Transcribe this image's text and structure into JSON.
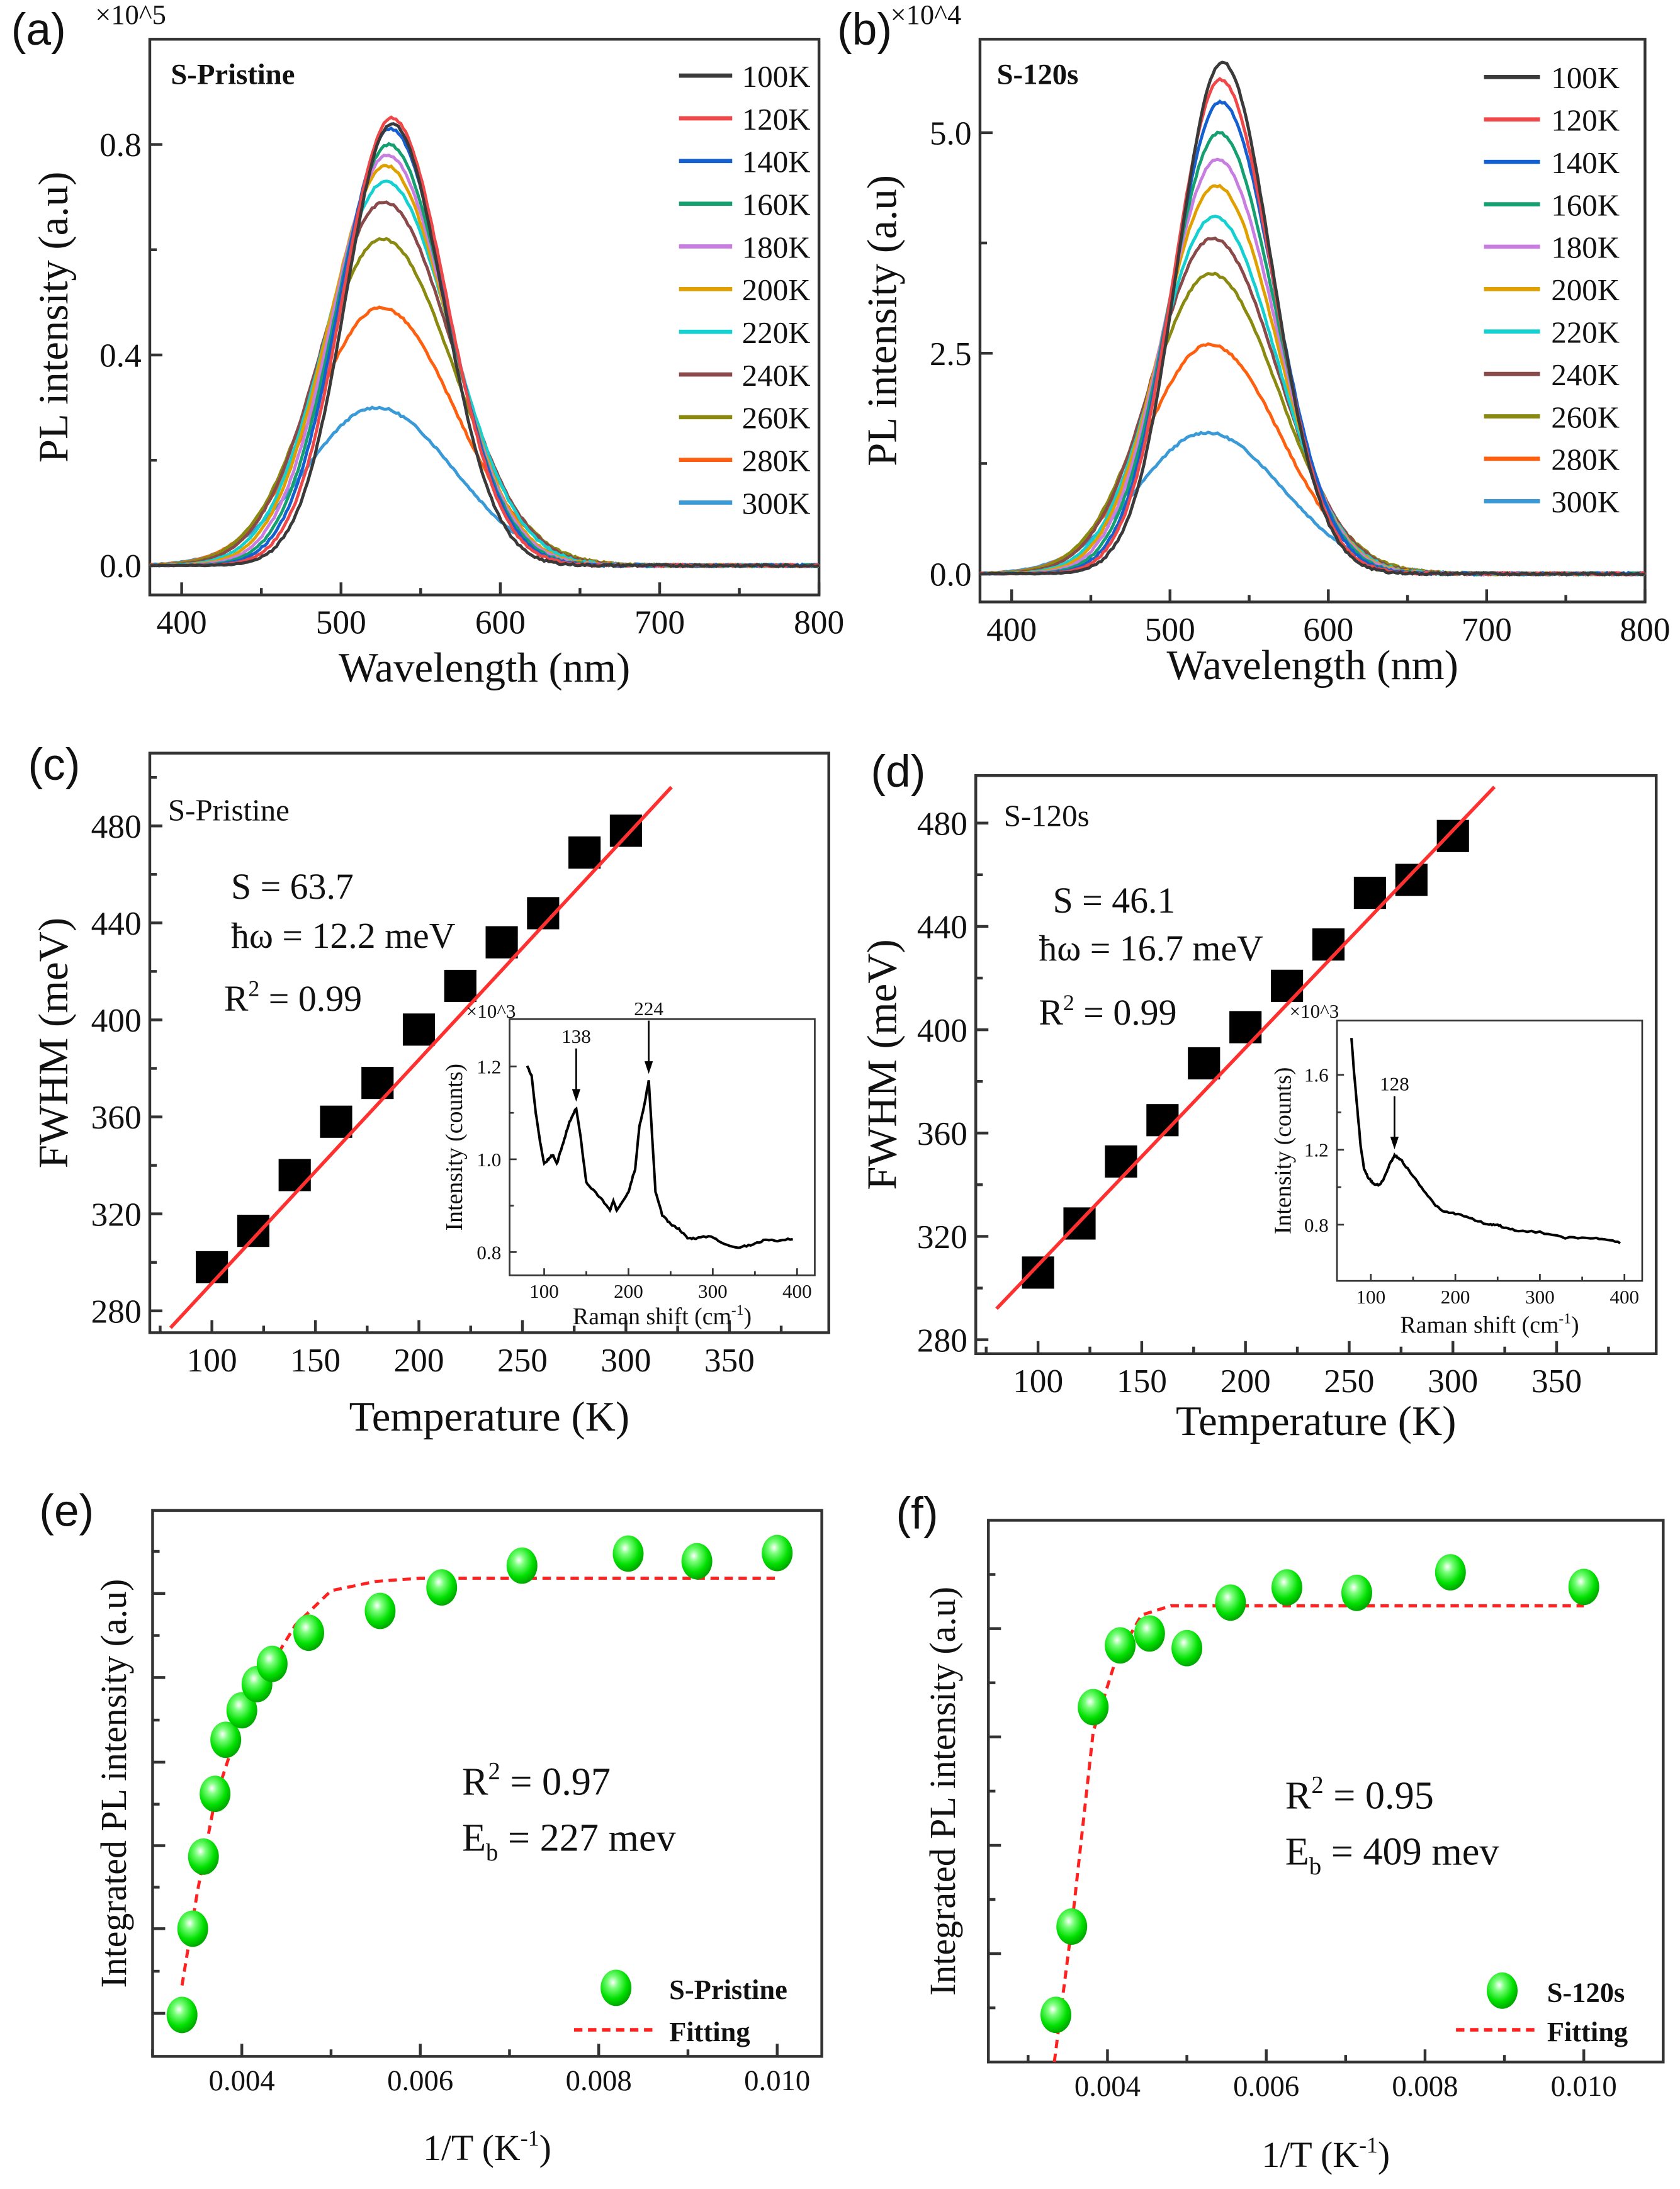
{
  "panel_labels": [
    "(a)",
    "(b)",
    "(c)",
    "(d)",
    "(e)",
    "(f)"
  ],
  "chart_data": [
    {
      "id": "a",
      "type": "line",
      "sample_label": "S-Pristine",
      "multiplier": "×10^5",
      "xlabel": "Wavelength (nm)",
      "ylabel": "PL intensity (a.u)",
      "xlim": [
        380,
        800
      ],
      "ylim": [
        -0.056,
        1.0
      ],
      "xticks": {
        "values": [
          400,
          500,
          600,
          700,
          800
        ],
        "labels": [
          "400",
          "500",
          "600",
          "700",
          "800"
        ],
        "minor": [
          450,
          550,
          650,
          750
        ]
      },
      "yticks": {
        "values": [
          0,
          0.4,
          0.8
        ],
        "labels": [
          "0.0",
          "0.4",
          "0.8"
        ],
        "minor": [
          0.2,
          0.6
        ]
      },
      "legend_position": "top-right",
      "series": [
        {
          "name": "100K",
          "color": "#3a3a3a",
          "peak_nm": 532,
          "peak": 0.84,
          "fwhm_nm": 72
        },
        {
          "name": "120K",
          "color": "#f04848",
          "peak_nm": 532,
          "peak": 0.85,
          "fwhm_nm": 76
        },
        {
          "name": "140K",
          "color": "#1560d0",
          "peak_nm": 531,
          "peak": 0.83,
          "fwhm_nm": 79
        },
        {
          "name": "160K",
          "color": "#14a070",
          "peak_nm": 530,
          "peak": 0.8,
          "fwhm_nm": 82
        },
        {
          "name": "180K",
          "color": "#c87de0",
          "peak_nm": 529,
          "peak": 0.78,
          "fwhm_nm": 85
        },
        {
          "name": "200K",
          "color": "#e0a000",
          "peak_nm": 528,
          "peak": 0.76,
          "fwhm_nm": 88
        },
        {
          "name": "220K",
          "color": "#14d0d0",
          "peak_nm": 528,
          "peak": 0.73,
          "fwhm_nm": 92
        },
        {
          "name": "240K",
          "color": "#8b4a4a",
          "peak_nm": 527,
          "peak": 0.69,
          "fwhm_nm": 96
        },
        {
          "name": "260K",
          "color": "#8a8a10",
          "peak_nm": 526,
          "peak": 0.62,
          "fwhm_nm": 100
        },
        {
          "name": "280K",
          "color": "#ff6010",
          "peak_nm": 525,
          "peak": 0.49,
          "fwhm_nm": 104
        },
        {
          "name": "300K",
          "color": "#3a9ad8",
          "peak_nm": 522,
          "peak": 0.3,
          "fwhm_nm": 110
        }
      ]
    },
    {
      "id": "b",
      "type": "line",
      "sample_label": "S-120s",
      "multiplier": "×10^4",
      "xlabel": "Wavelength (nm)",
      "ylabel": "PL intensity (a.u)",
      "xlim": [
        380,
        800
      ],
      "ylim": [
        -0.32,
        6.06
      ],
      "xticks": {
        "values": [
          400,
          500,
          600,
          700,
          800
        ],
        "labels": [
          "400",
          "500",
          "600",
          "700",
          "800"
        ],
        "minor": [
          450,
          550,
          650,
          750
        ]
      },
      "yticks": {
        "values": [
          0,
          2.5,
          5.0
        ],
        "labels": [
          "0.0",
          "2.5",
          "5.0"
        ],
        "minor": [
          1.25,
          3.75
        ]
      },
      "legend_position": "top-right",
      "series": [
        {
          "name": "100K",
          "color": "#3a3a3a",
          "peak_nm": 533,
          "peak": 5.8,
          "fwhm_nm": 70
        },
        {
          "name": "120K",
          "color": "#f04848",
          "peak_nm": 532,
          "peak": 5.6,
          "fwhm_nm": 73
        },
        {
          "name": "140K",
          "color": "#1560d0",
          "peak_nm": 532,
          "peak": 5.35,
          "fwhm_nm": 76
        },
        {
          "name": "160K",
          "color": "#14a070",
          "peak_nm": 531,
          "peak": 5.0,
          "fwhm_nm": 79
        },
        {
          "name": "180K",
          "color": "#c87de0",
          "peak_nm": 530,
          "peak": 4.7,
          "fwhm_nm": 82
        },
        {
          "name": "200K",
          "color": "#e0a000",
          "peak_nm": 529,
          "peak": 4.4,
          "fwhm_nm": 85
        },
        {
          "name": "220K",
          "color": "#14d0d0",
          "peak_nm": 528,
          "peak": 4.05,
          "fwhm_nm": 88
        },
        {
          "name": "240K",
          "color": "#8b4a4a",
          "peak_nm": 527,
          "peak": 3.8,
          "fwhm_nm": 92
        },
        {
          "name": "260K",
          "color": "#8a8a10",
          "peak_nm": 526,
          "peak": 3.4,
          "fwhm_nm": 96
        },
        {
          "name": "280K",
          "color": "#ff6010",
          "peak_nm": 525,
          "peak": 2.6,
          "fwhm_nm": 100
        },
        {
          "name": "300K",
          "color": "#3a9ad8",
          "peak_nm": 523,
          "peak": 1.6,
          "fwhm_nm": 108
        }
      ]
    },
    {
      "id": "c",
      "type": "scatter",
      "sample_label": "S-Pristine",
      "xlabel": "Temperature (K)",
      "ylabel": "FWHM (meV)",
      "xlim": [
        70,
        398
      ],
      "ylim": [
        271,
        510
      ],
      "xticks": {
        "values": [
          100,
          150,
          200,
          250,
          300,
          350
        ],
        "labels": [
          "100",
          "150",
          "200",
          "250",
          "300",
          "350"
        ],
        "minor": [
          75,
          125,
          175,
          225,
          275,
          325,
          375
        ]
      },
      "yticks": {
        "values": [
          280,
          320,
          360,
          400,
          440,
          480
        ],
        "labels": [
          "280",
          "320",
          "360",
          "400",
          "440",
          "480"
        ],
        "minor": [
          300,
          340,
          380,
          420,
          460,
          500
        ]
      },
      "points": {
        "x": [
          100,
          120,
          140,
          160,
          180,
          200,
          220,
          240,
          260,
          280,
          300
        ],
        "y": [
          298,
          313,
          336,
          358,
          374,
          396,
          414,
          432,
          444,
          469,
          478
        ]
      },
      "fit": {
        "x": [
          80,
          322
        ],
        "y": [
          273,
          496
        ],
        "color": "#ff3030"
      },
      "annotations": {
        "S": "S = 63.7",
        "hw": "ħω = 12.2 meV",
        "r2": {
          "pre": "R",
          "sup": "2",
          "post": " = 0.99"
        }
      },
      "inset": {
        "type": "line",
        "multiplier": "×10^3",
        "xlabel": {
          "pre": "Raman shift (cm",
          "sup": "-1",
          "post": ")"
        },
        "ylabel": "Intensity (counts)",
        "xlim": [
          59,
          421
        ],
        "ylim": [
          0.75,
          1.302
        ],
        "xticks": {
          "values": [
            100,
            200,
            300,
            400
          ],
          "labels": [
            "100",
            "200",
            "300",
            "400"
          ],
          "minor": [
            150,
            250,
            350
          ]
        },
        "yticks": {
          "values": [
            0.8,
            1.0,
            1.2
          ],
          "labels": [
            "0.8",
            "1.0",
            "1.2"
          ],
          "minor": [
            0.9,
            1.1
          ]
        },
        "x": [
          80,
          85,
          90,
          95,
          100,
          105,
          110,
          115,
          120,
          125,
          130,
          138,
          143,
          150,
          160,
          170,
          178,
          182,
          186,
          193,
          200,
          208,
          213,
          218,
          224,
          228,
          232,
          240,
          250,
          260,
          270,
          280,
          298,
          310,
          330,
          345,
          360,
          380,
          398
        ],
        "y": [
          1.2,
          1.18,
          1.1,
          1.04,
          0.99,
          1.0,
          1.01,
          0.99,
          1.02,
          1.05,
          1.08,
          1.11,
          1.05,
          0.95,
          0.93,
          0.91,
          0.89,
          0.91,
          0.89,
          0.91,
          0.93,
          0.98,
          1.07,
          1.11,
          1.17,
          1.05,
          0.93,
          0.88,
          0.86,
          0.85,
          0.83,
          0.83,
          0.835,
          0.82,
          0.81,
          0.815,
          0.825,
          0.825,
          0.83
        ],
        "peaks": [
          {
            "x": 138,
            "y": 1.115,
            "label": "138"
          },
          {
            "x": 224,
            "y": 1.175,
            "label": "224"
          }
        ]
      }
    },
    {
      "id": "d",
      "type": "scatter",
      "sample_label": "S-120s",
      "xlabel": "Temperature (K)",
      "ylabel": "FWHM (meV)",
      "xlim": [
        70,
        398
      ],
      "ylim": [
        274.6,
        498.4
      ],
      "xticks": {
        "values": [
          100,
          150,
          200,
          250,
          300,
          350
        ],
        "labels": [
          "100",
          "150",
          "200",
          "250",
          "300",
          "350"
        ],
        "minor": [
          75,
          125,
          175,
          225,
          275,
          325,
          375
        ]
      },
      "yticks": {
        "values": [
          280,
          320,
          360,
          400,
          440,
          480
        ],
        "labels": [
          "280",
          "320",
          "360",
          "400",
          "440",
          "480"
        ],
        "minor": [
          300,
          340,
          380,
          420,
          460
        ]
      },
      "points": {
        "x": [
          100,
          120,
          140,
          160,
          180,
          200,
          220,
          240,
          260,
          280,
          300
        ],
        "y": [
          306,
          325,
          349,
          365,
          387,
          401,
          417,
          433,
          453,
          458,
          475
        ]
      },
      "fit": {
        "x": [
          80,
          320
        ],
        "y": [
          292,
          494
        ],
        "color": "#ff3030"
      },
      "annotations": {
        "S": "S = 46.1",
        "hw": "ħω = 16.7 meV",
        "r2": {
          "pre": "R",
          "sup": "2",
          "post": " = 0.99"
        }
      },
      "inset": {
        "type": "line",
        "multiplier": "×10^3",
        "xlabel": {
          "pre": "Raman shift (cm",
          "sup": "-1",
          "post": ")"
        },
        "ylabel": "Intensity (counts)",
        "xlim": [
          60,
          421
        ],
        "ylim": [
          0.5,
          1.89
        ],
        "xticks": {
          "values": [
            100,
            200,
            300,
            400
          ],
          "labels": [
            "100",
            "200",
            "300",
            "400"
          ],
          "minor": [
            150,
            250,
            350
          ]
        },
        "yticks": {
          "values": [
            0.8,
            1.2,
            1.6
          ],
          "labels": [
            "0.8",
            "1.2",
            "1.6"
          ],
          "minor": [
            1.0,
            1.4
          ]
        },
        "x": [
          77,
          80,
          84,
          88,
          92,
          97,
          103,
          110,
          116,
          122,
          128,
          135,
          145,
          160,
          175,
          185,
          200,
          220,
          240,
          250,
          255,
          270,
          300,
          330,
          360,
          380,
          398
        ],
        "y": [
          1.8,
          1.62,
          1.42,
          1.22,
          1.1,
          1.05,
          1.02,
          1.01,
          1.05,
          1.12,
          1.17,
          1.15,
          1.09,
          1.0,
          0.91,
          0.87,
          0.86,
          0.83,
          0.8,
          0.8,
          0.79,
          0.77,
          0.76,
          0.73,
          0.73,
          0.72,
          0.7
        ],
        "peaks": [
          {
            "x": 128,
            "y": 1.18,
            "label": "128"
          }
        ]
      }
    },
    {
      "id": "e",
      "type": "scatter",
      "xlabel": {
        "pre": "1/T (K",
        "sup": "-1",
        "post": ")"
      },
      "ylabel": "Integrated PL intensity (a.u)",
      "xlim": [
        0.003,
        0.0105
      ],
      "ylim": [
        0,
        1
      ],
      "xticks": {
        "values": [
          0.004,
          0.006,
          0.008,
          0.01
        ],
        "labels": [
          "0.004",
          "0.006",
          "0.008",
          "0.010"
        ],
        "minor": [
          0.003,
          0.005,
          0.007,
          0.009
        ]
      },
      "yticks": {
        "values": [
          0.079,
          0.234,
          0.386,
          0.539,
          0.694,
          0.848
        ],
        "labels": [],
        "minor": [
          0.156,
          0.31,
          0.462,
          0.616,
          0.771,
          0.925
        ]
      },
      "points": {
        "x": [
          0.00333,
          0.00345,
          0.00357,
          0.0037,
          0.00382,
          0.004,
          0.00417,
          0.00434,
          0.00475,
          0.00555,
          0.00624,
          0.00714,
          0.00833,
          0.0091,
          0.01
        ],
        "y": [
          0.076,
          0.234,
          0.366,
          0.481,
          0.58,
          0.634,
          0.682,
          0.719,
          0.776,
          0.816,
          0.859,
          0.899,
          0.921,
          0.907,
          0.922
        ]
      },
      "fit": {
        "x": [
          0.00333,
          0.0035,
          0.0037,
          0.004,
          0.0043,
          0.0046,
          0.005,
          0.0055,
          0.006,
          0.01
        ],
        "y": [
          0.13,
          0.3,
          0.47,
          0.62,
          0.71,
          0.79,
          0.853,
          0.87,
          0.876,
          0.876
        ],
        "color": "#ff2020",
        "style": "dashed"
      },
      "annotations": {
        "r2": {
          "pre": "R",
          "sup": "2",
          "post": " = 0.97"
        },
        "eb": {
          "pre": "E",
          "sub": "b",
          "post": " = 227 mev"
        }
      },
      "legend": {
        "points_label": "S-Pristine",
        "fit_label": "Fitting",
        "position": "bottom-right"
      },
      "marker_color": "#00e000"
    },
    {
      "id": "f",
      "type": "scatter",
      "xlabel": {
        "pre": "1/T (K",
        "sup": "-1",
        "post": ")"
      },
      "ylabel": "Integrated PL intensity (a.u)",
      "xlim": [
        0.0025,
        0.011
      ],
      "ylim": [
        0,
        1
      ],
      "xticks": {
        "values": [
          0.004,
          0.006,
          0.008,
          0.01
        ],
        "labels": [
          "0.004",
          "0.006",
          "0.008",
          "0.010"
        ],
        "minor": [
          0.003,
          0.005,
          0.007,
          0.009
        ]
      },
      "yticks": {
        "values": [
          0.2,
          0.4,
          0.6,
          0.8
        ],
        "labels": [],
        "minor": [
          0.1,
          0.3,
          0.5,
          0.7,
          0.9
        ]
      },
      "points": {
        "x": [
          0.00335,
          0.00355,
          0.00382,
          0.00416,
          0.00453,
          0.005,
          0.00555,
          0.00626,
          0.00714,
          0.00832,
          0.01
        ],
        "y": [
          0.087,
          0.25,
          0.655,
          0.769,
          0.791,
          0.764,
          0.848,
          0.876,
          0.866,
          0.904,
          0.877
        ]
      },
      "fit": {
        "x": [
          0.00333,
          0.00355,
          0.00382,
          0.0041,
          0.00443,
          0.0048,
          0.01
        ],
        "y": [
          0.0,
          0.25,
          0.61,
          0.74,
          0.825,
          0.842,
          0.842
        ],
        "color": "#ff2020",
        "style": "dashed"
      },
      "annotations": {
        "r2": {
          "pre": "R",
          "sup": "2",
          "post": " = 0.95"
        },
        "eb": {
          "pre": "E",
          "sub": "b",
          "post": " = 409 mev"
        }
      },
      "legend": {
        "points_label": "S-120s",
        "fit_label": "Fitting",
        "position": "bottom-right"
      },
      "marker_color": "#00e000"
    }
  ]
}
